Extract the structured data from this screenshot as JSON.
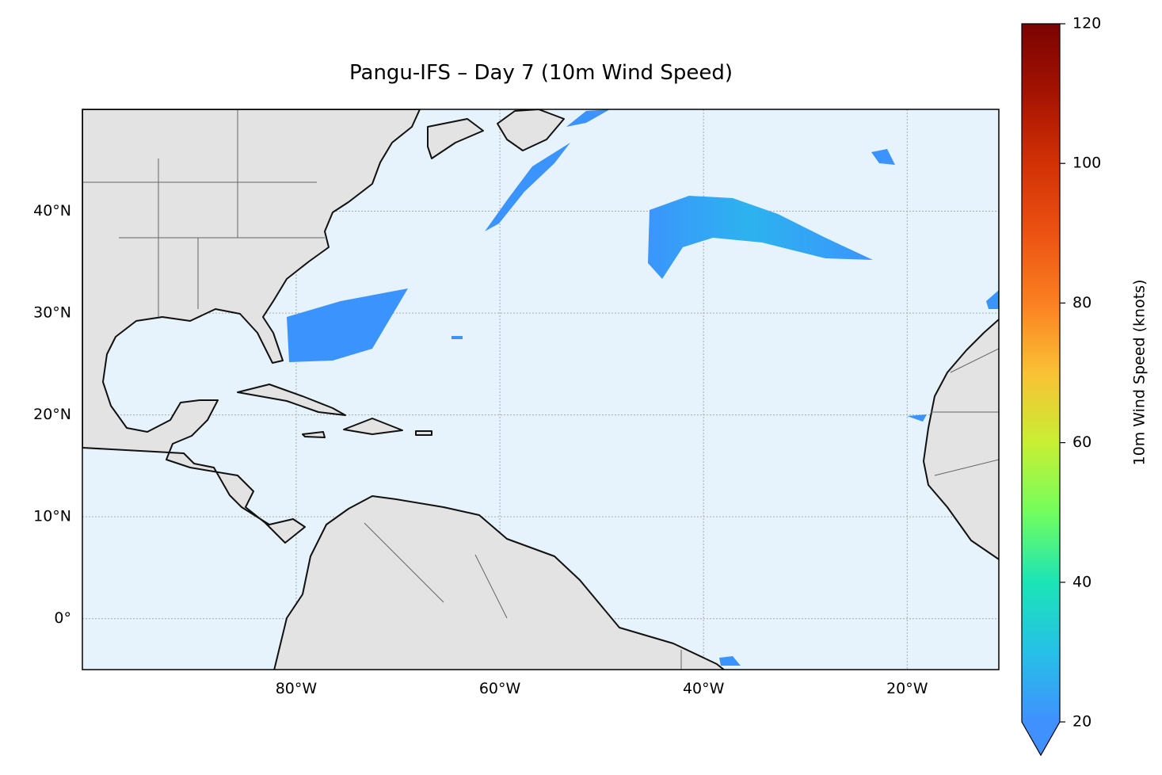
{
  "title": "Pangu-IFS – Day 7 (10m Wind Speed)",
  "map": {
    "lonlim": [
      -101,
      -11
    ],
    "latlim": [
      -5,
      50
    ],
    "lon_ticks": [
      {
        "value": -80,
        "label": "80°W"
      },
      {
        "value": -60,
        "label": "60°W"
      },
      {
        "value": -40,
        "label": "40°W"
      },
      {
        "value": -20,
        "label": "20°W"
      }
    ],
    "lat_ticks": [
      {
        "value": 0,
        "label": "0°"
      },
      {
        "value": 10,
        "label": "10°N"
      },
      {
        "value": 20,
        "label": "20°N"
      },
      {
        "value": 30,
        "label": "30°N"
      },
      {
        "value": 40,
        "label": "40°N"
      }
    ]
  },
  "colorbar": {
    "label": "10m Wind Speed (knots)",
    "lim": [
      20,
      120
    ],
    "ticks": [
      20,
      40,
      60,
      80,
      100,
      120
    ]
  }
}
